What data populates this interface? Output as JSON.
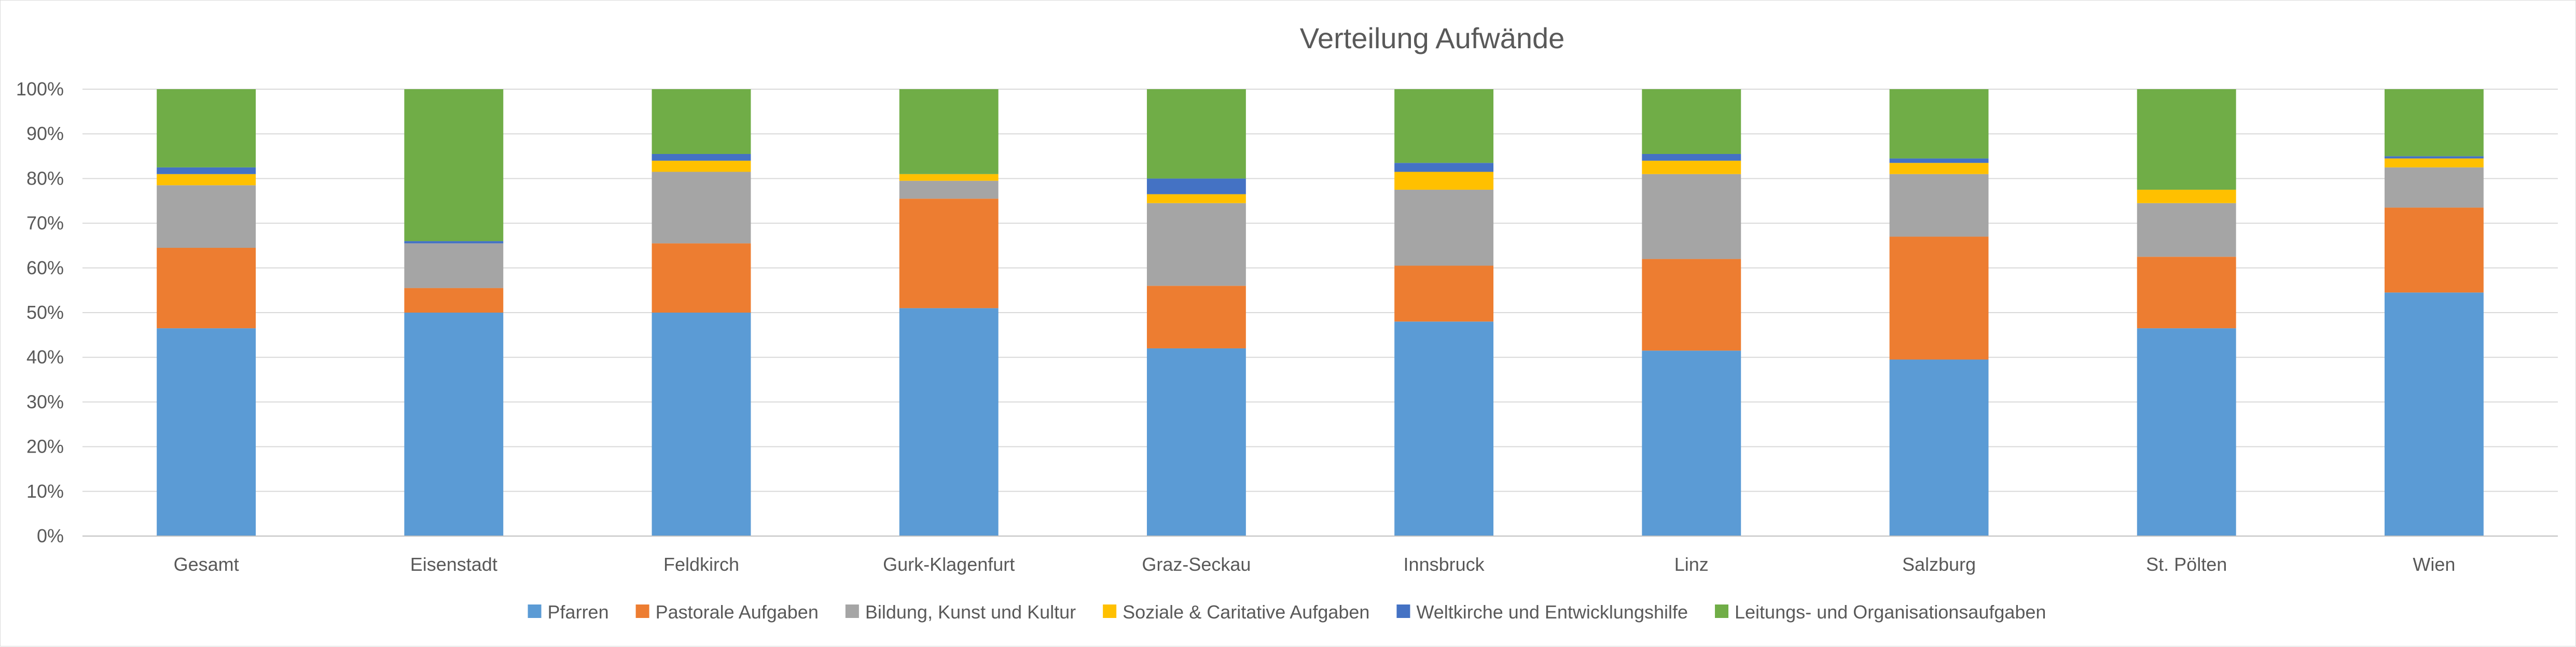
{
  "chart_data": {
    "type": "bar",
    "stacked": true,
    "percent": true,
    "title": "Verteilung Aufwände",
    "xlabel": "",
    "ylabel": "",
    "ylim": [
      0,
      100
    ],
    "y_ticks": [
      "0%",
      "10%",
      "20%",
      "30%",
      "40%",
      "50%",
      "60%",
      "70%",
      "80%",
      "90%",
      "100%"
    ],
    "grid": true,
    "legend_position": "bottom",
    "categories": [
      "Gesamt",
      "Eisenstadt",
      "Feldkirch",
      "Gurk-Klagenfurt",
      "Graz-Seckau",
      "Innsbruck",
      "Linz",
      "Salzburg",
      "St. Pölten",
      "Wien"
    ],
    "series": [
      {
        "name": "Pfarren",
        "color": "#5b9bd5",
        "values": [
          46.5,
          50.0,
          50.0,
          51.0,
          42.0,
          48.0,
          41.5,
          39.5,
          46.5,
          54.5
        ]
      },
      {
        "name": "Pastorale Aufgaben",
        "color": "#ed7d31",
        "values": [
          18.0,
          5.5,
          15.5,
          24.5,
          14.0,
          12.5,
          20.5,
          27.5,
          16.0,
          19.0
        ]
      },
      {
        "name": "Bildung, Kunst und Kultur",
        "color": "#a5a5a5",
        "values": [
          14.0,
          10.0,
          16.0,
          4.0,
          18.5,
          17.0,
          19.0,
          14.0,
          12.0,
          9.0
        ]
      },
      {
        "name": "Soziale & Caritative Aufgaben",
        "color": "#ffc000",
        "values": [
          2.5,
          0.0,
          2.5,
          1.5,
          2.0,
          4.0,
          3.0,
          2.5,
          3.0,
          2.0
        ]
      },
      {
        "name": "Weltkirche und Entwicklungshilfe",
        "color": "#4472c4",
        "values": [
          1.5,
          0.5,
          1.5,
          0.0,
          3.5,
          2.0,
          1.5,
          1.0,
          0.0,
          0.5
        ]
      },
      {
        "name": "Leitungs- und Organisationsaufgaben",
        "color": "#70ad47",
        "values": [
          17.5,
          34.0,
          14.5,
          19.0,
          20.0,
          16.5,
          14.5,
          15.5,
          22.5,
          15.0
        ]
      }
    ]
  }
}
